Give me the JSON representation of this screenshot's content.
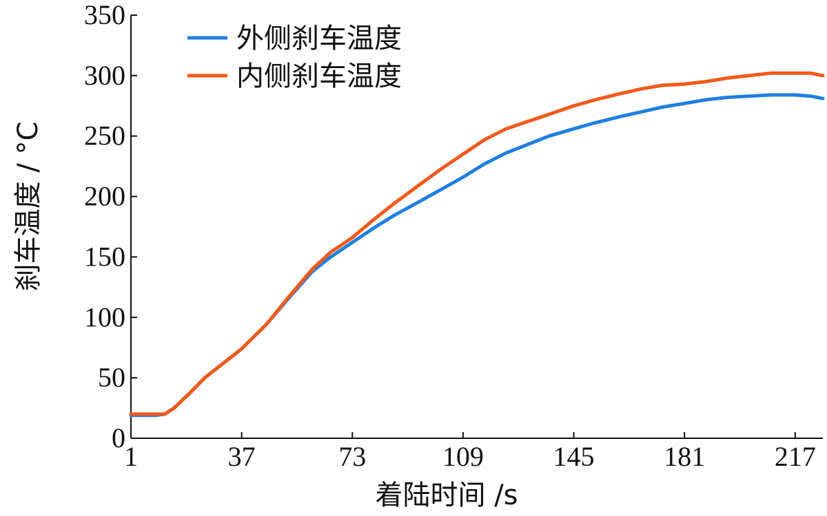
{
  "chart_data": {
    "type": "line",
    "xlabel": "着陆时间 /s",
    "ylabel": "刹车温度 / °C",
    "xlim": [
      1,
      226
    ],
    "ylim": [
      0,
      350
    ],
    "x_ticks": [
      1,
      37,
      73,
      109,
      145,
      181,
      217
    ],
    "y_ticks": [
      0,
      50,
      100,
      150,
      200,
      250,
      300,
      350
    ],
    "legend_position": "top-left",
    "grid": false,
    "series": [
      {
        "name": "外侧刹车温度",
        "color": "#1f7fe0",
        "x": [
          1,
          5,
          9,
          12,
          15,
          20,
          25,
          30,
          37,
          45,
          52,
          60,
          66,
          73,
          80,
          87,
          95,
          102,
          109,
          116,
          123,
          130,
          137,
          145,
          152,
          160,
          167,
          174,
          181,
          188,
          195,
          202,
          209,
          217,
          222,
          226
        ],
        "y": [
          19,
          19,
          19,
          20,
          25,
          37,
          50,
          60,
          74,
          94,
          115,
          138,
          150,
          162,
          174,
          185,
          196,
          206,
          216,
          227,
          236,
          243,
          250,
          256,
          261,
          266,
          270,
          274,
          277,
          280,
          282,
          283,
          284,
          284,
          283,
          281
        ]
      },
      {
        "name": "内侧刹车温度",
        "color": "#f05a1a",
        "x": [
          1,
          5,
          9,
          12,
          15,
          20,
          25,
          30,
          37,
          45,
          52,
          60,
          66,
          73,
          80,
          87,
          95,
          102,
          109,
          116,
          123,
          130,
          137,
          145,
          152,
          160,
          167,
          174,
          181,
          188,
          195,
          202,
          209,
          217,
          222,
          226
        ],
        "y": [
          20,
          20,
          20,
          20,
          25,
          37,
          50,
          60,
          74,
          94,
          116,
          140,
          154,
          166,
          181,
          195,
          210,
          223,
          235,
          247,
          256,
          262,
          268,
          275,
          280,
          285,
          289,
          292,
          293,
          295,
          298,
          300,
          302,
          302,
          302,
          300
        ]
      }
    ]
  }
}
